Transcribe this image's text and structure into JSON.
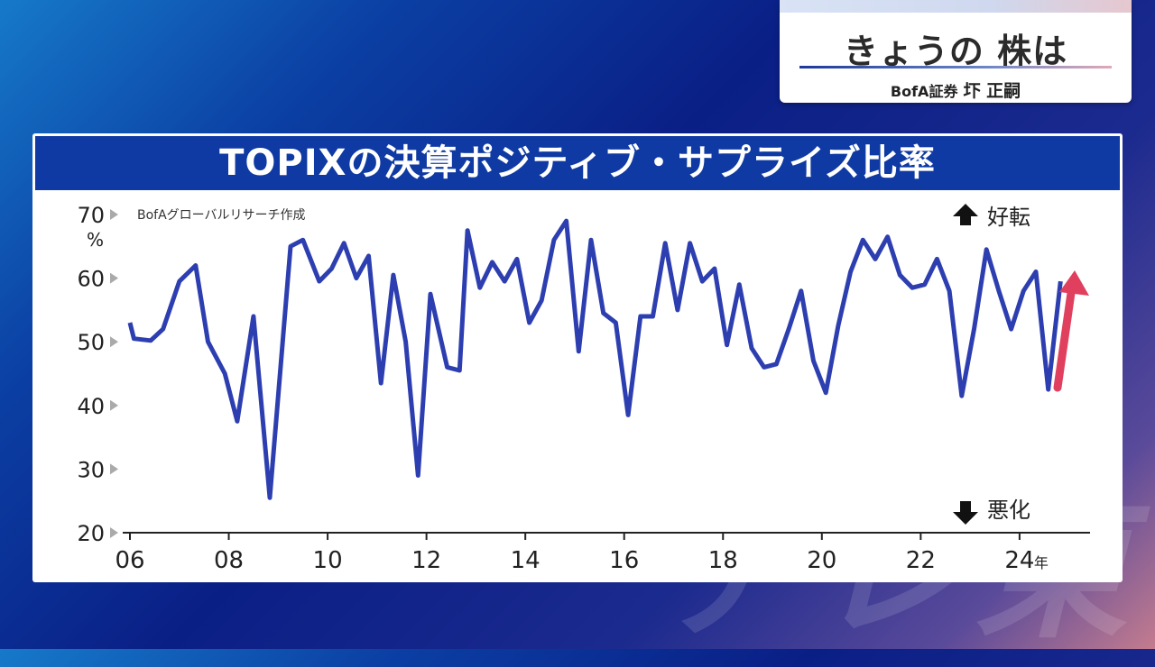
{
  "badge": {
    "title": "きょうの 株は",
    "org": "BofA証券",
    "name": "圷 正嗣"
  },
  "panel": {
    "title": "TOPIXの決算ポジティブ・サプライズ比率"
  },
  "chart_data": {
    "type": "line",
    "title": "TOPIXの決算ポジティブ・サプライズ比率",
    "source": "BofAグローバルリサーチ作成",
    "unit": "%",
    "ylim": [
      20,
      70
    ],
    "yticks": [
      "20",
      "30",
      "40",
      "50",
      "60",
      "70"
    ],
    "xlim": [
      2006,
      2025.7
    ],
    "xticks": [
      "06",
      "08",
      "10",
      "12",
      "14",
      "16",
      "18",
      "20",
      "22",
      "24"
    ],
    "xtick_suffix_last": "年",
    "annotations": {
      "up": "好転",
      "down": "悪化"
    },
    "grid": false,
    "series_color": "#2d3fb0",
    "arrow_color": "#e0405e",
    "series": [
      {
        "x": [
          2006.0,
          2006.08,
          2006.42,
          2006.67,
          2007.0,
          2007.33,
          2007.58,
          2007.92,
          2008.17,
          2008.5,
          2008.83,
          2009.25,
          2009.5,
          2009.83,
          2010.08,
          2010.33,
          2010.58,
          2010.83,
          2011.08,
          2011.33,
          2011.58,
          2011.83,
          2012.08,
          2012.42,
          2012.67,
          2012.83,
          2013.08,
          2013.33,
          2013.58,
          2013.83,
          2014.08,
          2014.33,
          2014.58,
          2014.83,
          2015.08,
          2015.33,
          2015.58,
          2015.83,
          2016.08,
          2016.33,
          2016.58,
          2016.83,
          2017.08,
          2017.33,
          2017.58,
          2017.83,
          2018.08,
          2018.33,
          2018.58,
          2018.83,
          2019.08,
          2019.33,
          2019.58,
          2019.83,
          2020.08,
          2020.33,
          2020.58,
          2020.83,
          2021.08,
          2021.33,
          2021.58,
          2021.83,
          2022.08,
          2022.33,
          2022.58,
          2022.83,
          2023.08,
          2023.33,
          2023.58,
          2023.83,
          2024.08,
          2024.33,
          2024.58,
          2024.83
        ],
        "y": [
          53,
          50.5,
          50.2,
          52,
          59.5,
          62,
          50,
          45,
          37.5,
          54,
          25.5,
          65,
          66,
          59.5,
          61.5,
          65.5,
          60,
          63.5,
          43.5,
          60.5,
          50,
          29,
          57.5,
          46,
          45.5,
          67.5,
          58.5,
          62.5,
          59.5,
          63,
          53,
          56.5,
          66,
          69,
          48.5,
          66,
          54.5,
          53,
          38.5,
          54,
          54,
          65.5,
          55,
          65.5,
          59.5,
          61.5,
          49.5,
          59,
          49,
          46,
          46.5,
          52,
          58,
          47,
          42,
          52.5,
          61,
          66,
          63,
          66.5,
          60.5,
          58.5,
          59,
          63,
          58,
          41.5,
          52,
          64.5,
          58,
          52,
          58,
          61,
          42.5,
          59.5
        ]
      }
    ]
  }
}
